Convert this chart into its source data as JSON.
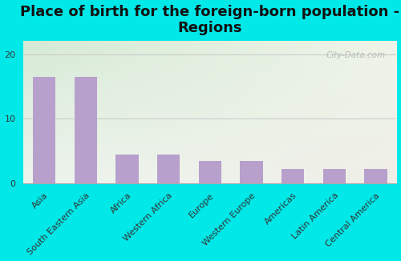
{
  "title": "Place of birth for the foreign-born population -\nRegions",
  "categories": [
    "Asia",
    "South Eastern Asia",
    "Africa",
    "Western Africa",
    "Europe",
    "Western Europe",
    "Americas",
    "Latin America",
    "Central America"
  ],
  "values": [
    16.5,
    16.5,
    4.5,
    4.5,
    3.5,
    3.5,
    2.2,
    2.2,
    2.2
  ],
  "bar_color": "#b8a0cc",
  "background_outer": "#00e8e8",
  "ylim": [
    0,
    22
  ],
  "yticks": [
    0,
    10,
    20
  ],
  "grid_color": "#cccccc",
  "watermark": "City-Data.com",
  "title_fontsize": 13,
  "tick_fontsize": 8.0,
  "gradient_top": "#d6ead6",
  "gradient_bottom": "#eef5ee",
  "gradient_right": "#f0efe8"
}
